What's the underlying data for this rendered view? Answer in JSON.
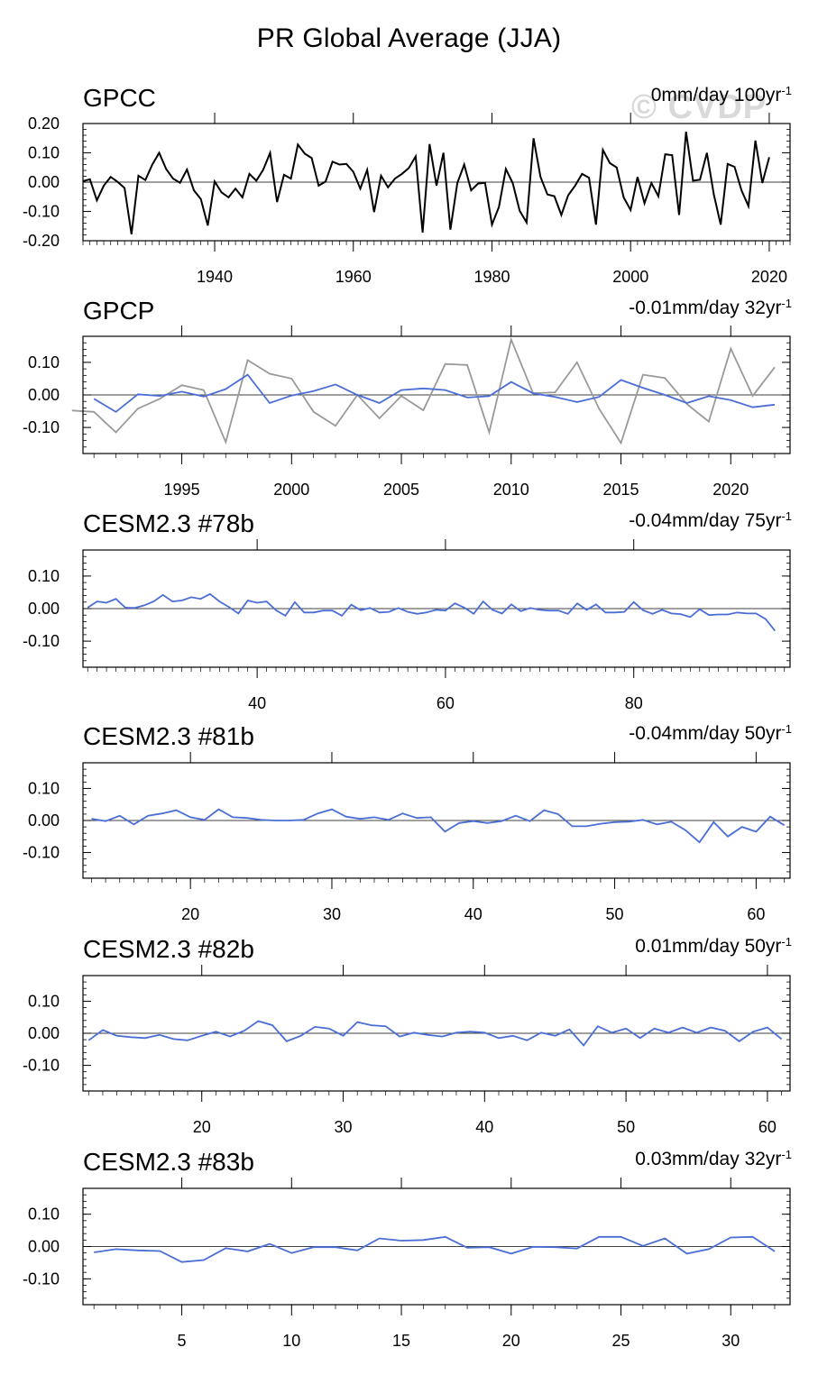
{
  "page_title": "PR Global Average (JJA)",
  "watermark": "© CVDP",
  "colors": {
    "gpcc": "#000000",
    "obs_gray": "#9a9a9a",
    "model_blue": "#4a6ed6",
    "axis": "#000000"
  },
  "chart_data": [
    {
      "type": "line",
      "title": "GPCC",
      "trend_label": "0mm/day 100yr",
      "trend_sup": "-1",
      "xlim": [
        1921,
        2023
      ],
      "ylim": [
        -0.2,
        0.2
      ],
      "yticks": [
        -0.2,
        -0.1,
        0.0,
        0.1,
        0.2
      ],
      "ytick_labels": [
        "-0.20",
        "-0.10",
        "0.00",
        "0.10",
        "0.20"
      ],
      "xticks": [
        1940,
        1960,
        1980,
        2000,
        2020
      ],
      "xtick_labels": [
        "1940",
        "1960",
        "1980",
        "2000",
        "2020"
      ],
      "series": [
        {
          "name": "GPCC",
          "color": "#000000",
          "x_start": 1921,
          "values": [
            0.003,
            0.01,
            -0.062,
            -0.012,
            0.018,
            0.001,
            -0.02,
            -0.178,
            0.022,
            0.007,
            0.06,
            0.1,
            0.045,
            0.012,
            -0.002,
            0.043,
            -0.028,
            -0.058,
            -0.148,
            0.002,
            -0.035,
            -0.052,
            -0.022,
            -0.052,
            0.028,
            0.005,
            0.042,
            0.1,
            -0.068,
            0.025,
            0.012,
            0.128,
            0.097,
            0.082,
            -0.012,
            0.002,
            0.07,
            0.06,
            0.062,
            0.035,
            -0.022,
            0.042,
            -0.102,
            0.022,
            -0.018,
            0.012,
            0.028,
            0.048,
            0.088,
            -0.172,
            0.13,
            -0.012,
            0.1,
            -0.162,
            -0.003,
            0.06,
            -0.028,
            -0.005,
            -0.002,
            -0.145,
            -0.085,
            0.045,
            -0.003,
            -0.098,
            -0.138,
            0.15,
            0.018,
            -0.042,
            -0.048,
            -0.112,
            -0.045,
            -0.012,
            0.028,
            0.015,
            -0.145,
            0.11,
            0.065,
            0.05,
            -0.052,
            -0.095,
            0.018,
            -0.072,
            -0.003,
            -0.048,
            0.095,
            0.092,
            -0.112,
            0.172,
            0.005,
            0.008,
            0.1,
            -0.042,
            -0.145,
            0.062,
            0.052,
            -0.028,
            -0.082,
            0.142,
            -0.003,
            0.085
          ]
        }
      ],
      "zero_line": true
    },
    {
      "type": "line",
      "title": "GPCP",
      "trend_label": "-0.01mm/day 32yr",
      "trend_sup": "-1",
      "xlim": [
        1990.5,
        2022.7
      ],
      "ylim": [
        -0.18,
        0.18
      ],
      "yticks": [
        -0.1,
        0.0,
        0.1
      ],
      "ytick_labels": [
        "-0.10",
        "0.00",
        "0.10"
      ],
      "xticks": [
        1995,
        2000,
        2005,
        2010,
        2015,
        2020
      ],
      "xtick_labels": [
        "1995",
        "2000",
        "2005",
        "2010",
        "2015",
        "2020"
      ],
      "series": [
        {
          "name": "GPCC",
          "color": "#9a9a9a",
          "x_start": 1990,
          "values": [
            -0.048,
            -0.052,
            -0.115,
            -0.042,
            -0.012,
            0.03,
            0.015,
            -0.145,
            0.107,
            0.065,
            0.05,
            -0.052,
            -0.095,
            0.0,
            -0.072,
            -0.003,
            -0.047,
            0.095,
            0.092,
            -0.115,
            0.17,
            0.005,
            0.008,
            0.1,
            -0.042,
            -0.148,
            0.062,
            0.052,
            -0.028,
            -0.082,
            0.142,
            -0.003,
            0.085
          ]
        },
        {
          "name": "GPCP",
          "color": "#4a6ed6",
          "x_start": 1991,
          "values": [
            -0.012,
            -0.052,
            0.002,
            -0.003,
            0.01,
            -0.005,
            0.018,
            0.062,
            -0.025,
            -0.002,
            0.012,
            0.032,
            0.0,
            -0.025,
            0.015,
            0.02,
            0.015,
            -0.008,
            -0.004,
            0.04,
            0.005,
            -0.006,
            -0.022,
            -0.006,
            0.046,
            0.022,
            0.0,
            -0.025,
            -0.004,
            -0.016,
            -0.038,
            -0.03
          ]
        }
      ],
      "zero_line": true
    },
    {
      "type": "line",
      "title": "CESM2.3 #78b",
      "trend_label": "-0.04mm/day 75yr",
      "trend_sup": "-1",
      "xlim": [
        21.5,
        96.6
      ],
      "ylim": [
        -0.18,
        0.18
      ],
      "yticks": [
        -0.1,
        0.0,
        0.1
      ],
      "ytick_labels": [
        "-0.10",
        "0.00",
        "0.10"
      ],
      "xticks": [
        40,
        60,
        80
      ],
      "xtick_labels": [
        "40",
        "60",
        "80"
      ],
      "series": [
        {
          "name": "CESM2.3 #78b",
          "color": "#4a6ed6",
          "x_start": 22,
          "values": [
            0.003,
            0.022,
            0.018,
            0.03,
            0.003,
            0.002,
            0.01,
            0.022,
            0.042,
            0.022,
            0.025,
            0.035,
            0.03,
            0.045,
            0.022,
            0.005,
            -0.015,
            0.025,
            0.018,
            0.022,
            -0.005,
            -0.022,
            0.02,
            -0.012,
            -0.012,
            -0.006,
            -0.006,
            -0.022,
            0.012,
            -0.005,
            0.002,
            -0.012,
            -0.01,
            0.002,
            -0.01,
            -0.016,
            -0.012,
            -0.004,
            -0.006,
            0.016,
            0.003,
            -0.016,
            0.022,
            -0.004,
            -0.015,
            0.013,
            -0.008,
            0.002,
            -0.004,
            -0.006,
            -0.006,
            -0.016,
            0.016,
            -0.004,
            0.013,
            -0.012,
            -0.012,
            -0.01,
            0.02,
            -0.005,
            -0.016,
            -0.004,
            -0.015,
            -0.017,
            -0.026,
            -0.002,
            -0.02,
            -0.018,
            -0.018,
            -0.012,
            -0.015,
            -0.015,
            -0.032,
            -0.068
          ]
        }
      ],
      "zero_line": true
    },
    {
      "type": "line",
      "title": "CESM2.3 #81b",
      "trend_label": "-0.04mm/day 50yr",
      "trend_sup": "-1",
      "xlim": [
        12.4,
        62.4
      ],
      "ylim": [
        -0.18,
        0.18
      ],
      "yticks": [
        -0.1,
        0.0,
        0.1
      ],
      "ytick_labels": [
        "-0.10",
        "0.00",
        "0.10"
      ],
      "xticks": [
        20,
        30,
        40,
        50,
        60
      ],
      "xtick_labels": [
        "20",
        "30",
        "40",
        "50",
        "60"
      ],
      "series": [
        {
          "name": "CESM2.3 #81b",
          "color": "#4a6ed6",
          "x_start": 13,
          "values": [
            0.005,
            -0.002,
            0.015,
            -0.012,
            0.015,
            0.022,
            0.032,
            0.01,
            0.002,
            0.035,
            0.01,
            0.008,
            0.002,
            0.0,
            0.0,
            0.002,
            0.022,
            0.035,
            0.012,
            0.005,
            0.01,
            0.002,
            0.022,
            0.008,
            0.01,
            -0.035,
            -0.008,
            -0.002,
            -0.008,
            -0.002,
            0.015,
            -0.002,
            0.032,
            0.02,
            -0.018,
            -0.018,
            -0.01,
            -0.005,
            -0.004,
            0.002,
            -0.012,
            -0.004,
            -0.03,
            -0.068,
            -0.005,
            -0.05,
            -0.02,
            -0.035,
            0.012,
            -0.015
          ]
        }
      ],
      "zero_line": true
    },
    {
      "type": "line",
      "title": "CESM2.3 #82b",
      "trend_label": "0.01mm/day 50yr",
      "trend_sup": "-1",
      "xlim": [
        11.6,
        61.6
      ],
      "ylim": [
        -0.18,
        0.18
      ],
      "yticks": [
        -0.1,
        0.0,
        0.1
      ],
      "ytick_labels": [
        "-0.10",
        "0.00",
        "0.10"
      ],
      "xticks": [
        20,
        30,
        40,
        50,
        60
      ],
      "xtick_labels": [
        "20",
        "30",
        "40",
        "50",
        "60"
      ],
      "series": [
        {
          "name": "CESM2.3 #82b",
          "color": "#4a6ed6",
          "x_start": 12,
          "values": [
            -0.022,
            0.01,
            -0.008,
            -0.012,
            -0.015,
            -0.005,
            -0.018,
            -0.022,
            -0.008,
            0.005,
            -0.01,
            0.008,
            0.038,
            0.025,
            -0.025,
            -0.008,
            0.02,
            0.015,
            -0.008,
            0.035,
            0.025,
            0.022,
            -0.01,
            0.002,
            -0.005,
            -0.01,
            0.002,
            0.005,
            0.002,
            -0.015,
            -0.008,
            -0.022,
            0.002,
            -0.008,
            0.012,
            -0.038,
            0.022,
            0.002,
            0.015,
            -0.015,
            0.015,
            0.002,
            0.018,
            0.002,
            0.018,
            0.008,
            -0.025,
            0.005,
            0.018,
            -0.018
          ]
        }
      ],
      "zero_line": true
    },
    {
      "type": "line",
      "title": "CESM2.3 #83b",
      "trend_label": "0.03mm/day 32yr",
      "trend_sup": "-1",
      "xlim": [
        0.5,
        32.7
      ],
      "ylim": [
        -0.18,
        0.18
      ],
      "yticks": [
        -0.1,
        0.0,
        0.1
      ],
      "ytick_labels": [
        "-0.10",
        "0.00",
        "0.10"
      ],
      "xticks": [
        5,
        10,
        15,
        20,
        25,
        30
      ],
      "xtick_labels": [
        "5",
        "10",
        "15",
        "20",
        "25",
        "30"
      ],
      "series": [
        {
          "name": "CESM2.3 #83b",
          "color": "#4a6ed6",
          "x_start": 1,
          "values": [
            -0.018,
            -0.008,
            -0.012,
            -0.014,
            -0.048,
            -0.042,
            -0.005,
            -0.015,
            0.008,
            -0.02,
            -0.002,
            -0.002,
            -0.012,
            0.025,
            0.018,
            0.02,
            0.03,
            -0.004,
            -0.002,
            -0.022,
            -0.001,
            -0.002,
            -0.006,
            0.03,
            0.03,
            0.002,
            0.025,
            -0.022,
            -0.008,
            0.028,
            0.03,
            -0.015
          ]
        }
      ],
      "zero_line": true
    }
  ]
}
